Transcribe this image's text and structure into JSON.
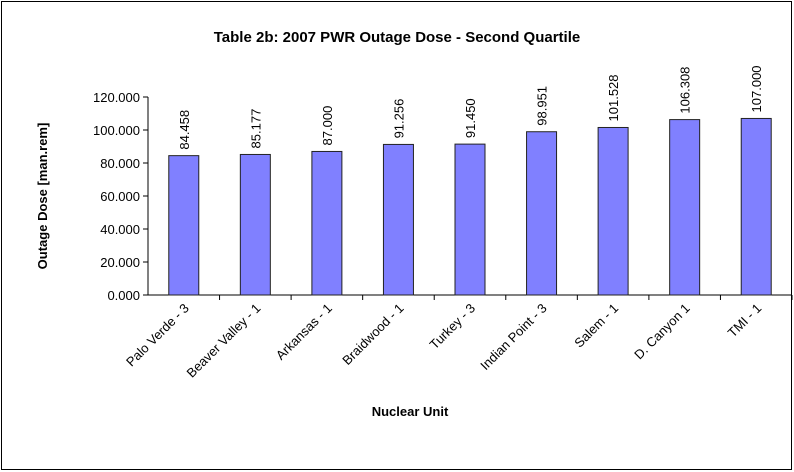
{
  "chart_data": {
    "type": "bar",
    "title": "Table 2b: 2007 PWR Outage Dose - Second Quartile",
    "x_label": "Nuclear Unit",
    "y_label": "Outage Dose [man.rem]",
    "categories": [
      "Palo Verde - 3",
      "Beaver Valley - 1",
      "Arkansas - 1",
      "Braidwood - 1",
      "Turkey - 3",
      "Indian Point - 3",
      "Salem - 1",
      "D. Canyon 1",
      "TMI - 1"
    ],
    "values": [
      84.458,
      85.177,
      87,
      91.256,
      91.45,
      98.951,
      101.528,
      106.308,
      107
    ],
    "value_labels": [
      "84.458",
      "85.177",
      "87.000",
      "91.256",
      "91.450",
      "98.951",
      "101.528",
      "106.308",
      "107.000"
    ],
    "color": "#8080ff",
    "ylim": [
      0,
      120
    ],
    "yticks": [
      {
        "value": 0,
        "label": "0.000"
      },
      {
        "value": 20,
        "label": "20.000"
      },
      {
        "value": 40,
        "label": "40.000"
      },
      {
        "value": 60,
        "label": "60.000"
      },
      {
        "value": 80,
        "label": "80.000"
      },
      {
        "value": 100,
        "label": "100.000"
      },
      {
        "value": 120,
        "label": "120.000"
      }
    ],
    "grid": false
  }
}
